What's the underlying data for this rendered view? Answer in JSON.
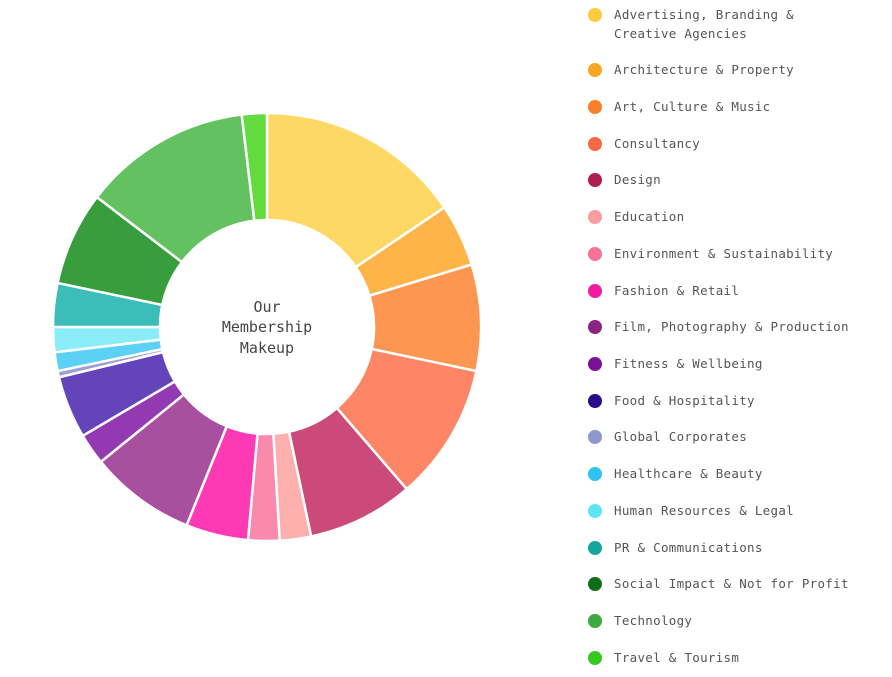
{
  "chart_data": {
    "type": "pie",
    "center_label": [
      "Our",
      "Membership",
      "Makeup"
    ],
    "legend_placement": "right",
    "categories": [
      "Advertising, Branding & Creative Agencies",
      "Architecture & Property",
      "Art, Culture & Music",
      "Consultancy",
      "Design",
      "Education",
      "Environment & Sustainability",
      "Fashion & Retail",
      "Film, Photography & Production",
      "Fitness & Wellbeing",
      "Food & Hospitality",
      "Global Corporates",
      "Healthcare & Beauty",
      "Human Resources & Legal",
      "PR & Communications",
      "Social Impact & Not for Profit",
      "Technology",
      "Travel & Tourism"
    ],
    "values": [
      16.5,
      5.0,
      8.5,
      11.0,
      8.5,
      2.5,
      2.5,
      5.0,
      8.5,
      2.5,
      5.0,
      0.5,
      1.5,
      2.0,
      3.5,
      7.5,
      13.5,
      2.0
    ],
    "colors": [
      "#FED865",
      "#FDB54A",
      "#FD9650",
      "#FE8566",
      "#CB4A79",
      "#FDB0AE",
      "#F98AAE",
      "#FD3AB4",
      "#A84FA0",
      "#933AB3",
      "#6345B9",
      "#9E9FCF",
      "#5DD1F5",
      "#8AEDF8",
      "#3BBDB9",
      "#389E3D",
      "#63C162",
      "#61DB3E"
    ],
    "legend_colors": [
      "#F9CB40",
      "#F8A623",
      "#F8802D",
      "#F76845",
      "#B01F4E",
      "#F99DA0",
      "#F67397",
      "#F21AA1",
      "#8B2582",
      "#7A1296",
      "#2A0D8C",
      "#8E98CC",
      "#2FC2EF",
      "#5CE5F5",
      "#12A69F",
      "#0F6E16",
      "#3DAA3D",
      "#36C721"
    ]
  }
}
